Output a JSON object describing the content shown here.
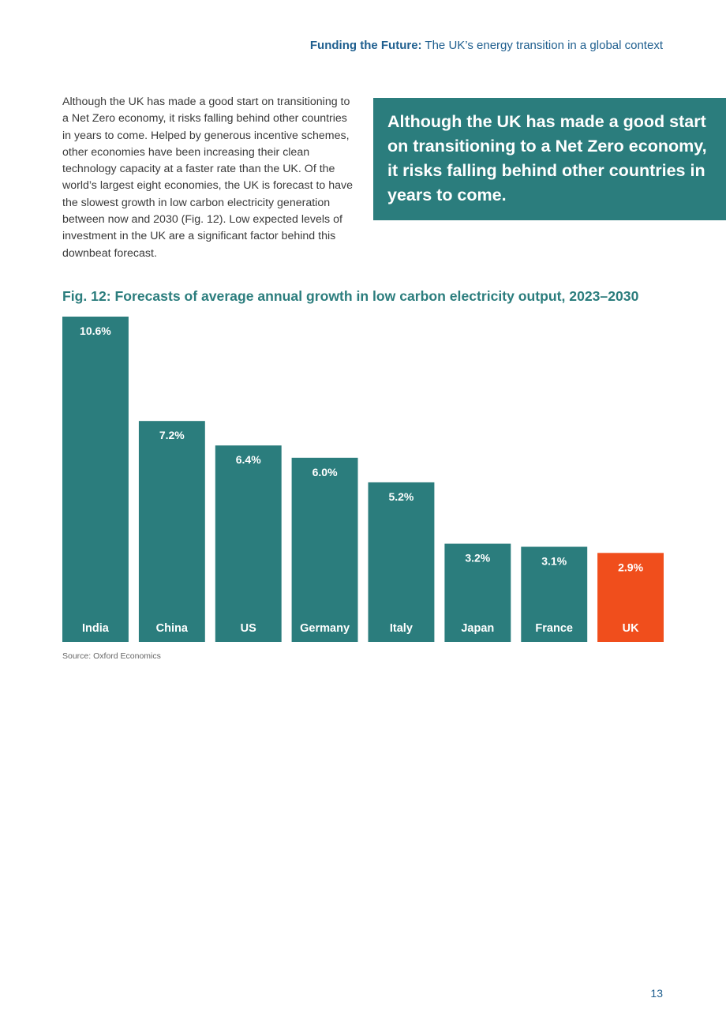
{
  "header": {
    "bold": "Funding the Future:",
    "rest": " The UK’s energy transition in a global context"
  },
  "body_text": "Although the UK has made a good start on transitioning to a Net Zero economy, it risks falling behind other countries in years to come. Helped by generous incentive schemes, other economies have been increasing their clean technology capacity at a faster rate than the UK. Of the world’s largest eight economies, the UK is forecast to have the slowest growth in low carbon electricity generation between now and 2030 (Fig. 12). Low expected levels of investment in the UK are a significant factor behind this downbeat forecast.",
  "callout": "Although the UK has made a good start on transitioning to a Net Zero economy, it risks falling behind other countries in years to come.",
  "figure_title": "Fig. 12: Forecasts of average annual growth in low carbon electricity output, 2023–2030",
  "source": "Source: Oxford Economics",
  "page_number": "13",
  "colors": {
    "bar": "#2b7d7d",
    "highlight": "#f04e1c",
    "label_text": "#ffffff"
  },
  "chart_data": {
    "type": "bar",
    "title": "Fig. 12: Forecasts of average annual growth in low carbon electricity output, 2023–2030",
    "categories": [
      "India",
      "China",
      "US",
      "Germany",
      "Italy",
      "Japan",
      "France",
      "UK"
    ],
    "values": [
      10.6,
      7.2,
      6.4,
      6.0,
      5.2,
      3.2,
      3.1,
      2.9
    ],
    "data_labels": [
      "10.6%",
      "7.2%",
      "6.4%",
      "6.0%",
      "5.2%",
      "3.2%",
      "3.1%",
      "2.9%"
    ],
    "highlight_category": "UK",
    "unit": "%",
    "grid": false,
    "legend": "none"
  }
}
